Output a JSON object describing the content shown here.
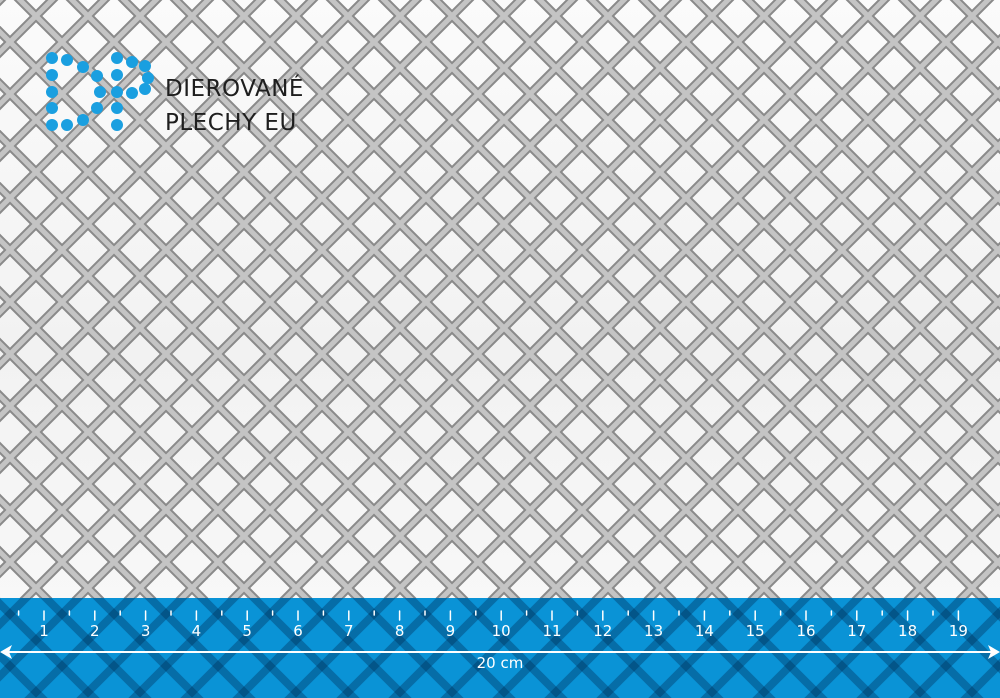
{
  "logo": {
    "line1": "DIEROVANÉ",
    "line2": "PLECHY EU",
    "mark_text": "DP",
    "color": "#1a9fe0"
  },
  "ruler": {
    "color": "#0a93d6",
    "labels": [
      "1",
      "2",
      "3",
      "4",
      "5",
      "6",
      "7",
      "8",
      "9",
      "10",
      "11",
      "12",
      "13",
      "14",
      "15",
      "16",
      "17",
      "18",
      "19"
    ],
    "total_label": "20 cm"
  },
  "colors": {
    "mesh": "#a9a9a9",
    "background": "#f7f7f7"
  }
}
